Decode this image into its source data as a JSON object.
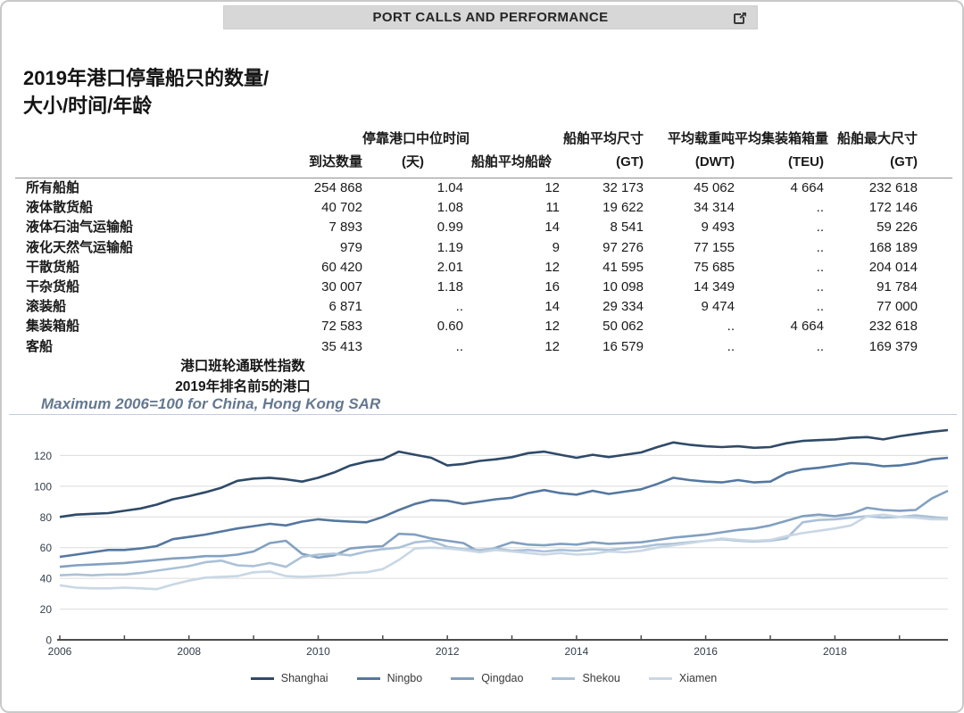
{
  "header": {
    "title": "PORT CALLS AND PERFORMANCE"
  },
  "page_title": {
    "line1": "2019年港口停靠船只的数量/",
    "line2": "大小/时间/年龄"
  },
  "table": {
    "col_headers": [
      {
        "line1": "",
        "line2": "到达数量",
        "align": "al-r"
      },
      {
        "line1": "停靠港口中位时间",
        "line2": "(天)",
        "align": "al-c"
      },
      {
        "line1": "",
        "line2": "船舶平均船龄",
        "align": "al-c"
      },
      {
        "line1": "船舶平均尺寸",
        "line2": "(GT)",
        "align": "al-r"
      },
      {
        "line1": "平均载重吨",
        "line2": "(DWT)",
        "align": "al-r"
      },
      {
        "line1": "平均集装箱箱量",
        "line2": "(TEU)",
        "align": "al-r"
      },
      {
        "line1": "船舶最大尺寸",
        "line2": "(GT)",
        "align": "al-r"
      }
    ],
    "rows": [
      {
        "label": "所有船舶",
        "values": [
          "254 868",
          "1.04",
          "12",
          "32 173",
          "45 062",
          "4 664",
          "232 618"
        ]
      },
      {
        "label": "液体散货船",
        "values": [
          "40 702",
          "1.08",
          "11",
          "19 622",
          "34 314",
          "..",
          "172 146"
        ]
      },
      {
        "label": "液体石油气运输船",
        "values": [
          "7 893",
          "0.99",
          "14",
          "8 541",
          "9 493",
          "..",
          "59 226"
        ]
      },
      {
        "label": "液化天然气运输船",
        "values": [
          "979",
          "1.19",
          "9",
          "97 276",
          "77 155",
          "..",
          "168 189"
        ]
      },
      {
        "label": "干散货船",
        "values": [
          "60 420",
          "2.01",
          "12",
          "41 595",
          "75 685",
          "..",
          "204 014"
        ]
      },
      {
        "label": "干杂货船",
        "values": [
          "30 007",
          "1.18",
          "16",
          "10 098",
          "14 349",
          "..",
          "91 784"
        ]
      },
      {
        "label": "滚装船",
        "values": [
          "6 871",
          "..",
          "14",
          "29 334",
          "9 474",
          "..",
          "77 000"
        ]
      },
      {
        "label": "集装箱船",
        "values": [
          "72 583",
          "0.60",
          "12",
          "50 062",
          "..",
          "4 664",
          "232 618"
        ]
      },
      {
        "label": "客船",
        "values": [
          "35 413",
          "..",
          "12",
          "16 579",
          "..",
          "..",
          "169 379"
        ]
      }
    ]
  },
  "chart_section": {
    "title1": "港口班轮通联性指数",
    "title2": "2019年排名前5的港口",
    "subtitle": "Maximum 2006=100 for China, Hong Kong SAR"
  },
  "chart_data": {
    "type": "line",
    "title": "港口班轮通联性指数 — 2019年排名前5的港口",
    "note": "Maximum 2006=100 for China, Hong Kong SAR",
    "x_start": 2006,
    "x_step": 0.25,
    "x_tick_years": [
      2006,
      2008,
      2010,
      2012,
      2014,
      2016,
      2018
    ],
    "minor_tick_years": [
      2006,
      2007,
      2008,
      2009,
      2010,
      2011,
      2012,
      2013,
      2014,
      2015,
      2016,
      2017,
      2018,
      2019
    ],
    "ylim": [
      0,
      140
    ],
    "y_ticks": [
      0,
      20,
      40,
      60,
      80,
      100,
      120
    ],
    "grid": true,
    "legend_position": "bottom",
    "colors": {
      "grid": "#dcdcdc",
      "axis": "#4d4d4d",
      "labels": "#33404d"
    },
    "series": [
      {
        "name": "Shanghai",
        "color": "#2f4a68",
        "values": [
          80,
          81.5,
          82,
          82.5,
          84,
          85.5,
          88,
          91.5,
          93.5,
          96,
          99,
          103.5,
          105,
          105.5,
          104.5,
          103,
          105.5,
          109,
          113.5,
          116,
          117.5,
          122.5,
          120.5,
          118.5,
          113.5,
          114.5,
          116.5,
          117.5,
          119,
          121.5,
          122.5,
          120.5,
          118.5,
          120.5,
          119,
          120.5,
          122,
          125.5,
          128.5,
          127,
          126,
          125.5,
          126,
          125,
          125.5,
          128,
          129.5,
          130,
          130.5,
          131.5,
          132,
          130.5,
          132.5,
          134,
          135.5,
          136.5
        ]
      },
      {
        "name": "Ningbo",
        "color": "#54779f",
        "values": [
          54,
          55.5,
          57,
          58.5,
          58.5,
          59.5,
          61,
          65.5,
          67,
          68.5,
          70.5,
          72.5,
          74,
          75.5,
          74.5,
          77,
          78.5,
          77.5,
          77,
          76.5,
          80,
          84.5,
          88.5,
          91,
          90.5,
          88.5,
          90,
          91.5,
          92.5,
          95.5,
          97.5,
          95.5,
          94.5,
          97,
          95,
          96.5,
          98,
          101.5,
          105.5,
          104,
          103,
          102.5,
          104,
          102.5,
          103,
          108.5,
          111,
          112,
          113.5,
          115,
          114.5,
          113,
          113.5,
          115,
          117.5,
          118.5
        ]
      },
      {
        "name": "Qingdao",
        "color": "#82a0c0",
        "values": [
          47.5,
          48.5,
          49,
          49.5,
          50,
          51,
          52,
          53,
          53.5,
          54.5,
          54.5,
          55.5,
          57.5,
          63,
          64.5,
          56,
          53.5,
          55,
          59.5,
          60.5,
          61,
          69,
          68.5,
          66,
          64.5,
          63,
          57,
          60,
          63.5,
          62,
          61.5,
          62.5,
          62,
          63.5,
          62.5,
          63,
          63.5,
          65,
          66.5,
          67.5,
          68.5,
          70,
          71.5,
          72.5,
          74.5,
          77.5,
          80.5,
          81.5,
          80.5,
          82,
          86,
          84.5,
          84,
          84.5,
          92,
          97
        ]
      },
      {
        "name": "Shekou",
        "color": "#abc1d8",
        "values": [
          42,
          42.5,
          42,
          42.5,
          42.5,
          43.5,
          45,
          46.5,
          48,
          50.5,
          51.5,
          48.5,
          48,
          50,
          47.5,
          54,
          55.5,
          56,
          55,
          57.5,
          59,
          60,
          63.5,
          64.5,
          60.5,
          59,
          58.5,
          59.5,
          58,
          58.5,
          57.5,
          58.5,
          58,
          59,
          58.5,
          59.5,
          60.5,
          62,
          62.5,
          63.5,
          64.5,
          65.5,
          64.5,
          64,
          64.5,
          66,
          76.5,
          78,
          78.5,
          79.5,
          80.5,
          79.5,
          80,
          81,
          80,
          79
        ]
      },
      {
        "name": "Xiamen",
        "color": "#c9d7e5",
        "values": [
          35.5,
          34,
          33.5,
          33.5,
          34,
          33.5,
          33,
          36,
          38.5,
          40.5,
          41,
          41.5,
          44,
          44.5,
          41.5,
          41,
          41.5,
          42,
          43.5,
          44,
          46,
          52,
          59.5,
          60,
          59.5,
          58.5,
          57,
          58.5,
          57.5,
          56.5,
          55.5,
          56.5,
          55.5,
          56,
          57.5,
          57,
          58,
          60,
          61.5,
          63,
          64.5,
          66,
          65,
          64.5,
          65,
          67.5,
          69.5,
          71,
          72.5,
          74.5,
          80.5,
          81.5,
          80,
          79.5,
          78.5,
          78.5
        ]
      }
    ]
  }
}
